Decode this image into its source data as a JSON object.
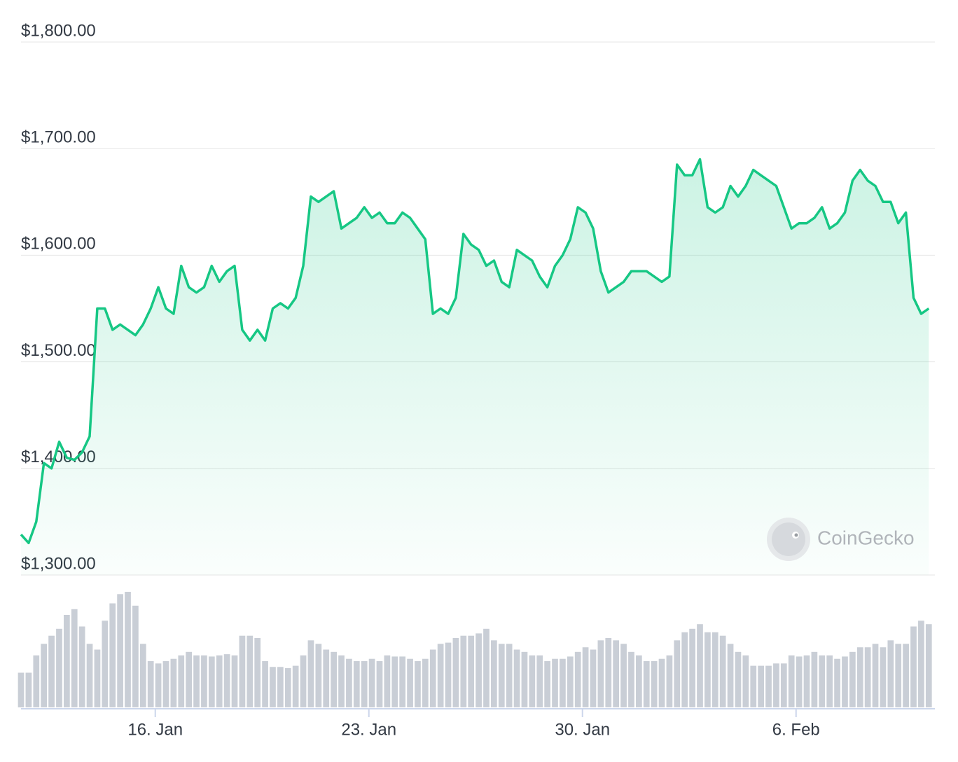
{
  "watermark": "CoinGecko",
  "chart_data": [
    {
      "type": "line",
      "color": "#16c784",
      "x": [
        11.6,
        11.85,
        12.1,
        12.35,
        12.6,
        12.85,
        13.1,
        13.35,
        13.6,
        13.85,
        14.1,
        14.35,
        14.6,
        14.85,
        15.1,
        15.35,
        15.6,
        15.85,
        16.1,
        16.35,
        16.6,
        16.85,
        17.1,
        17.35,
        17.6,
        17.85,
        18.1,
        18.35,
        18.6,
        18.85,
        19.1,
        19.35,
        19.6,
        19.85,
        20.1,
        20.35,
        20.6,
        20.85,
        21.1,
        21.35,
        21.6,
        21.85,
        22.1,
        22.35,
        22.6,
        22.85,
        23.1,
        23.35,
        23.6,
        23.85,
        24.1,
        24.35,
        24.6,
        24.85,
        25.1,
        25.35,
        25.6,
        25.85,
        26.1,
        26.35,
        26.6,
        26.85,
        27.1,
        27.35,
        27.6,
        27.85,
        28.1,
        28.35,
        28.6,
        28.85,
        29.1,
        29.35,
        29.6,
        29.85,
        30.1,
        30.35,
        30.6,
        30.85,
        31.1,
        31.35,
        31.6,
        31.85,
        32.1,
        32.35,
        32.6,
        32.85,
        33.1,
        33.35,
        33.6,
        33.85,
        34.1,
        34.35,
        34.6,
        34.85,
        35.1,
        35.35,
        35.6,
        35.85,
        36.1,
        36.35,
        36.6,
        36.85,
        37.1,
        37.35,
        37.6,
        37.85,
        38.1,
        38.35,
        38.6,
        38.85,
        39.1,
        39.35,
        39.6,
        39.85,
        40.1,
        40.35,
        40.6,
        40.85,
        41.1,
        41.35
      ],
      "values": [
        1338,
        1330,
        1350,
        1405,
        1400,
        1425,
        1410,
        1408,
        1415,
        1430,
        1550,
        1550,
        1530,
        1535,
        1530,
        1525,
        1535,
        1550,
        1570,
        1550,
        1545,
        1590,
        1570,
        1565,
        1570,
        1590,
        1575,
        1585,
        1590,
        1530,
        1520,
        1530,
        1520,
        1550,
        1555,
        1550,
        1560,
        1590,
        1655,
        1650,
        1655,
        1660,
        1625,
        1630,
        1635,
        1645,
        1635,
        1640,
        1630,
        1630,
        1640,
        1635,
        1625,
        1615,
        1545,
        1550,
        1545,
        1560,
        1620,
        1610,
        1605,
        1590,
        1595,
        1575,
        1570,
        1605,
        1600,
        1595,
        1580,
        1570,
        1590,
        1600,
        1615,
        1645,
        1640,
        1625,
        1585,
        1565,
        1570,
        1575,
        1585,
        1585,
        1585,
        1580,
        1575,
        1580,
        1685,
        1675,
        1675,
        1690,
        1645,
        1640,
        1645,
        1665,
        1655,
        1665,
        1680,
        1675,
        1670,
        1665,
        1645,
        1625,
        1630,
        1630,
        1635,
        1645,
        1625,
        1630,
        1640,
        1670,
        1680,
        1670,
        1665,
        1650,
        1650,
        1630,
        1640,
        1560,
        1545,
        1550
      ],
      "xlim": [
        11.6,
        41.55
      ],
      "xticks": [
        {
          "value": 16,
          "label": "16. Jan"
        },
        {
          "value": 23,
          "label": "23. Jan"
        },
        {
          "value": 30,
          "label": "30. Jan"
        },
        {
          "value": 37,
          "label": "6. Feb"
        }
      ],
      "ylim": [
        1300,
        1800
      ],
      "yticks": [
        {
          "value": 1300,
          "label": "$1,300.00"
        },
        {
          "value": 1400,
          "label": "$1,400.00"
        },
        {
          "value": 1500,
          "label": "$1,500.00"
        },
        {
          "value": 1600,
          "label": "$1,600.00"
        },
        {
          "value": 1700,
          "label": "$1,700.00"
        },
        {
          "value": 1800,
          "label": "$1,800.00"
        }
      ],
      "grid": true
    },
    {
      "type": "bar",
      "color": "#c9ced6",
      "x": [
        11.6,
        11.85,
        12.1,
        12.35,
        12.6,
        12.85,
        13.1,
        13.35,
        13.6,
        13.85,
        14.1,
        14.35,
        14.6,
        14.85,
        15.1,
        15.35,
        15.6,
        15.85,
        16.1,
        16.35,
        16.6,
        16.85,
        17.1,
        17.35,
        17.6,
        17.85,
        18.1,
        18.35,
        18.6,
        18.85,
        19.1,
        19.35,
        19.6,
        19.85,
        20.1,
        20.35,
        20.6,
        20.85,
        21.1,
        21.35,
        21.6,
        21.85,
        22.1,
        22.35,
        22.6,
        22.85,
        23.1,
        23.35,
        23.6,
        23.85,
        24.1,
        24.35,
        24.6,
        24.85,
        25.1,
        25.35,
        25.6,
        25.85,
        26.1,
        26.35,
        26.6,
        26.85,
        27.1,
        27.35,
        27.6,
        27.85,
        28.1,
        28.35,
        28.6,
        28.85,
        29.1,
        29.35,
        29.6,
        29.85,
        30.1,
        30.35,
        30.6,
        30.85,
        31.1,
        31.35,
        31.6,
        31.85,
        32.1,
        32.35,
        32.6,
        32.85,
        33.1,
        33.35,
        33.6,
        33.85,
        34.1,
        34.35,
        34.6,
        34.85,
        35.1,
        35.35,
        35.6,
        35.85,
        36.1,
        36.35,
        36.6,
        36.85,
        37.1,
        37.35,
        37.6,
        37.85,
        38.1,
        38.35,
        38.6,
        38.85,
        39.1,
        39.35,
        39.6,
        39.85,
        40.1,
        40.35,
        40.6,
        40.85,
        41.1,
        41.35
      ],
      "values": [
        30,
        30,
        45,
        55,
        62,
        68,
        80,
        85,
        70,
        55,
        50,
        75,
        90,
        98,
        100,
        88,
        55,
        40,
        38,
        40,
        42,
        45,
        48,
        45,
        45,
        44,
        45,
        46,
        45,
        62,
        62,
        60,
        40,
        35,
        35,
        34,
        36,
        45,
        58,
        55,
        50,
        48,
        45,
        42,
        40,
        40,
        42,
        40,
        45,
        44,
        44,
        42,
        40,
        42,
        50,
        55,
        56,
        60,
        62,
        62,
        64,
        68,
        58,
        55,
        55,
        50,
        48,
        45,
        45,
        40,
        42,
        42,
        44,
        48,
        52,
        50,
        58,
        60,
        58,
        55,
        48,
        45,
        40,
        40,
        42,
        45,
        58,
        65,
        68,
        72,
        65,
        65,
        62,
        55,
        48,
        45,
        36,
        36,
        36,
        38,
        38,
        45,
        44,
        45,
        48,
        45,
        45,
        42,
        44,
        48,
        52,
        52,
        55,
        52,
        58,
        55,
        55,
        70,
        75,
        72
      ]
    }
  ]
}
